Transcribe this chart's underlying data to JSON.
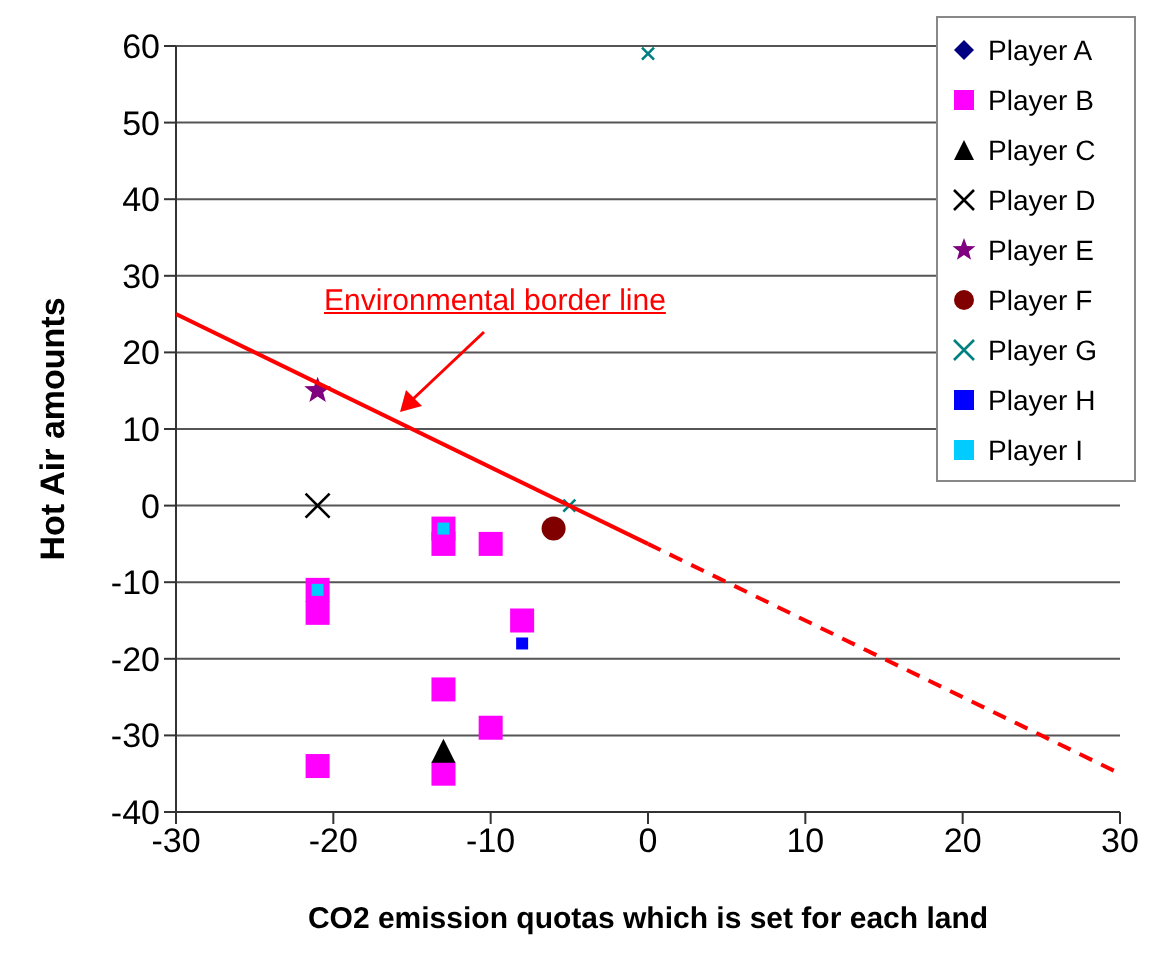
{
  "chart_data": {
    "type": "scatter",
    "xlabel": "CO2 emission quotas which is set for each land",
    "ylabel": "Hot Air amounts",
    "xlim": [
      -30,
      30
    ],
    "xticks": [
      -30,
      -20,
      -10,
      0,
      10,
      20,
      30
    ],
    "ylim": [
      -40,
      60
    ],
    "yticks": [
      -40,
      -30,
      -20,
      -10,
      0,
      10,
      20,
      30,
      40,
      50,
      60
    ],
    "grid": "y",
    "legend": "top right",
    "annotations": [
      "Environmental border line"
    ],
    "series": [
      {
        "name": "Player A",
        "color": "#000080",
        "marker": "diamond"
      },
      {
        "name": "Player B",
        "color": "#ff00ff",
        "marker": "square",
        "x": [
          -21,
          -21,
          -21,
          -13,
          -13,
          -10,
          -8,
          -13,
          -10,
          -13
        ],
        "values": [
          -11,
          -14,
          -34,
          -3,
          -5,
          -5,
          -15,
          -24,
          -29,
          -35
        ]
      },
      {
        "name": "Player C",
        "color": "#000000",
        "marker": "triangle",
        "x": [
          -13
        ],
        "values": [
          -32
        ]
      },
      {
        "name": "Player D",
        "color": "#000000",
        "marker": "cross",
        "x": [
          -21
        ],
        "values": [
          0
        ]
      },
      {
        "name": "Player E",
        "color": "#800080",
        "marker": "star",
        "x": [
          -21
        ],
        "values": [
          15
        ]
      },
      {
        "name": "Player F",
        "color": "#800000",
        "marker": "circle",
        "x": [
          -6
        ],
        "values": [
          -3
        ]
      },
      {
        "name": "Player G",
        "color": "#008080",
        "marker": "cross",
        "x": [
          -5,
          0
        ],
        "values": [
          0,
          59
        ]
      },
      {
        "name": "Player H",
        "color": "#0000ff",
        "marker": "square",
        "x": [
          -8
        ],
        "values": [
          -18
        ]
      },
      {
        "name": "Player I",
        "color": "#00ccff",
        "marker": "square",
        "x": [
          -21,
          -13
        ],
        "values": [
          -11,
          -3
        ]
      },
      {
        "type": "line",
        "color": "#ff0000",
        "marker": "none",
        "line_style": "solid",
        "x": [
          -30,
          0
        ],
        "values": [
          25,
          -5
        ]
      },
      {
        "type": "line",
        "color": "#ff0000",
        "marker": "none",
        "line_style": "dashed",
        "x": [
          0,
          30
        ],
        "values": [
          -5,
          -35
        ]
      }
    ]
  }
}
